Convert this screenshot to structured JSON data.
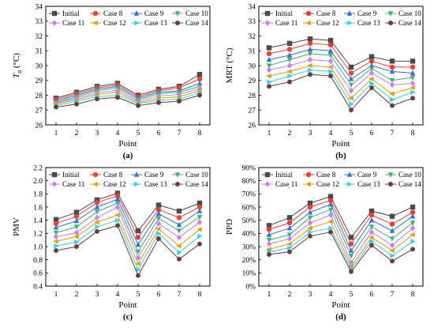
{
  "chart_data": [
    {
      "type": "line",
      "panel_label": "(a)",
      "xlabel": "Point",
      "ylabel": "T_a (°C)",
      "ylabel_main": "T",
      "ylabel_sub": "a",
      "ylabel_unit": " (°C)",
      "x": [
        1,
        2,
        3,
        4,
        5,
        6,
        7,
        8
      ],
      "xlim": [
        0.5,
        8.5
      ],
      "ylim": [
        26,
        34
      ],
      "yticks": [
        "26",
        "27",
        "28",
        "29",
        "30",
        "31",
        "32",
        "33",
        "34"
      ],
      "series": [
        {
          "name": "Initial",
          "values": [
            27.8,
            28.2,
            28.6,
            28.8,
            28.0,
            28.4,
            28.6,
            29.4
          ]
        },
        {
          "name": "Case 8",
          "values": [
            27.7,
            28.1,
            28.5,
            28.7,
            27.9,
            28.3,
            28.5,
            29.1
          ]
        },
        {
          "name": "Case 9",
          "values": [
            27.6,
            28.0,
            28.4,
            28.6,
            27.8,
            28.2,
            28.3,
            28.8
          ]
        },
        {
          "name": "Case 10",
          "values": [
            27.5,
            27.9,
            28.3,
            28.5,
            27.7,
            28.1,
            28.2,
            28.6
          ]
        },
        {
          "name": "Case 11",
          "values": [
            27.45,
            27.8,
            28.15,
            28.35,
            27.6,
            27.95,
            28.05,
            28.45
          ]
        },
        {
          "name": "Case 12",
          "values": [
            27.4,
            27.7,
            28.05,
            28.2,
            27.5,
            27.8,
            27.9,
            28.3
          ]
        },
        {
          "name": "Case 13",
          "values": [
            27.3,
            27.6,
            27.9,
            28.0,
            27.45,
            27.65,
            27.75,
            28.15
          ]
        },
        {
          "name": "Case 14",
          "values": [
            27.2,
            27.4,
            27.75,
            27.85,
            27.3,
            27.5,
            27.6,
            28.0
          ]
        }
      ]
    },
    {
      "type": "line",
      "panel_label": "(b)",
      "xlabel": "Point",
      "ylabel": "MRT (°C)",
      "x": [
        1,
        2,
        3,
        4,
        5,
        6,
        7,
        8
      ],
      "xlim": [
        0.5,
        8.5
      ],
      "ylim": [
        26,
        34
      ],
      "yticks": [
        "26",
        "27",
        "28",
        "29",
        "30",
        "31",
        "32",
        "33",
        "34"
      ],
      "series": [
        {
          "name": "Initial",
          "values": [
            31.2,
            31.5,
            31.8,
            31.7,
            29.9,
            30.6,
            30.3,
            30.3
          ]
        },
        {
          "name": "Case 8",
          "values": [
            30.8,
            31.1,
            31.5,
            31.4,
            29.5,
            30.3,
            29.9,
            29.9
          ]
        },
        {
          "name": "Case 9",
          "values": [
            30.4,
            30.7,
            31.1,
            31.0,
            29.1,
            30.0,
            29.6,
            29.5
          ]
        },
        {
          "name": "Case 10",
          "values": [
            30.0,
            30.4,
            30.8,
            30.7,
            28.7,
            29.8,
            29.0,
            29.2
          ]
        },
        {
          "name": "Case 11",
          "values": [
            29.7,
            30.0,
            30.4,
            30.3,
            28.3,
            29.5,
            28.7,
            28.8
          ]
        },
        {
          "name": "Case 12",
          "values": [
            29.3,
            29.6,
            30.0,
            29.9,
            27.8,
            29.1,
            28.1,
            28.5
          ]
        },
        {
          "name": "Case 13",
          "values": [
            28.9,
            29.3,
            29.7,
            29.6,
            27.4,
            28.8,
            27.7,
            28.2
          ]
        },
        {
          "name": "Case 14",
          "values": [
            28.6,
            28.9,
            29.4,
            29.3,
            27.0,
            28.5,
            27.3,
            27.8
          ]
        }
      ]
    },
    {
      "type": "line",
      "panel_label": "(c)",
      "xlabel": "Point",
      "ylabel": "PMV",
      "x": [
        1,
        2,
        3,
        4,
        5,
        6,
        7,
        8
      ],
      "xlim": [
        0.5,
        8.5
      ],
      "ylim": [
        0.4,
        2.2
      ],
      "yticks": [
        "0.4",
        "0.6",
        "0.8",
        "1.0",
        "1.2",
        "1.4",
        "1.6",
        "1.8",
        "2.0",
        "2.2"
      ],
      "series": [
        {
          "name": "Initial",
          "values": [
            1.41,
            1.52,
            1.71,
            1.81,
            1.24,
            1.63,
            1.54,
            1.66
          ]
        },
        {
          "name": "Case 8",
          "values": [
            1.35,
            1.46,
            1.67,
            1.77,
            1.14,
            1.56,
            1.44,
            1.6
          ]
        },
        {
          "name": "Case 9",
          "values": [
            1.29,
            1.39,
            1.6,
            1.72,
            1.03,
            1.5,
            1.33,
            1.54
          ]
        },
        {
          "name": "Case 10",
          "values": [
            1.21,
            1.3,
            1.53,
            1.66,
            0.92,
            1.43,
            1.24,
            1.45
          ]
        },
        {
          "name": "Case 11",
          "values": [
            1.15,
            1.21,
            1.44,
            1.6,
            0.83,
            1.35,
            1.14,
            1.37
          ]
        },
        {
          "name": "Case 12",
          "values": [
            1.08,
            1.15,
            1.37,
            1.48,
            0.74,
            1.27,
            1.01,
            1.26
          ]
        },
        {
          "name": "Case 13",
          "values": [
            1.01,
            1.07,
            1.3,
            1.4,
            0.65,
            1.2,
            0.91,
            1.16
          ]
        },
        {
          "name": "Case 14",
          "values": [
            0.94,
            1.0,
            1.23,
            1.32,
            0.56,
            1.12,
            0.81,
            1.04
          ]
        }
      ]
    },
    {
      "type": "line",
      "panel_label": "(d)",
      "xlabel": "Point",
      "ylabel": "PPD",
      "x": [
        1,
        2,
        3,
        4,
        5,
        6,
        7,
        8
      ],
      "xlim": [
        0.5,
        8.5
      ],
      "ylim": [
        0,
        90
      ],
      "yticks": [
        "0%",
        "10%",
        "20%",
        "30%",
        "40%",
        "50%",
        "60%",
        "70%",
        "80%",
        "90%"
      ],
      "series": [
        {
          "name": "Initial",
          "values": [
            46,
            52,
            63,
            68,
            37,
            57,
            53,
            60
          ]
        },
        {
          "name": "Case 8",
          "values": [
            43,
            48,
            60,
            65,
            32,
            54,
            47,
            56
          ]
        },
        {
          "name": "Case 9",
          "values": [
            39,
            44,
            56,
            62,
            27,
            50,
            42,
            53
          ]
        },
        {
          "name": "Case 10",
          "values": [
            35,
            39,
            52,
            58,
            23,
            45,
            36,
            48
          ]
        },
        {
          "name": "Case 11",
          "values": [
            32,
            36,
            48,
            54,
            18,
            41,
            31,
            44
          ]
        },
        {
          "name": "Case 12",
          "values": [
            28,
            32,
            44,
            49,
            15,
            37,
            27,
            39
          ]
        },
        {
          "name": "Case 13",
          "values": [
            26,
            29,
            41,
            44,
            13,
            34,
            23,
            34
          ]
        },
        {
          "name": "Case 14",
          "values": [
            24,
            26,
            38,
            41,
            11,
            31,
            19,
            28
          ]
        }
      ]
    }
  ],
  "legend_entries": [
    "Initial",
    "Case 8",
    "Case 9",
    "Case 10",
    "Case 11",
    "Case 12",
    "Case 13",
    "Case 14"
  ],
  "series_colors": [
    "#4a4a4a",
    "#ff3b30",
    "#2f6fe6",
    "#3cb371",
    "#c77dff",
    "#e1a000",
    "#2fd3e6",
    "#6b3b3b"
  ],
  "series_markers": [
    "square",
    "circle",
    "triangle-up",
    "triangle-down",
    "diamond",
    "triangle-left",
    "triangle-right",
    "hexagon"
  ]
}
